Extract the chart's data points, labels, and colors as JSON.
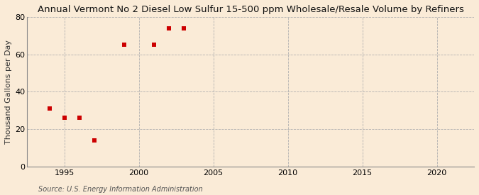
{
  "title": "Annual Vermont No 2 Diesel Low Sulfur 15-500 ppm Wholesale/Resale Volume by Refiners",
  "ylabel": "Thousand Gallons per Day",
  "source": "Source: U.S. Energy Information Administration",
  "x_data": [
    1994,
    1995,
    1996,
    1997,
    1999,
    2001,
    2002,
    2003
  ],
  "y_data": [
    31,
    26,
    26,
    14,
    65,
    65,
    74,
    74
  ],
  "marker_color": "#cc0000",
  "marker_size": 25,
  "xlim": [
    1992.5,
    2022.5
  ],
  "ylim": [
    0,
    80
  ],
  "yticks": [
    0,
    20,
    40,
    60,
    80
  ],
  "xticks": [
    1995,
    2000,
    2005,
    2010,
    2015,
    2020
  ],
  "background_color": "#faebd7",
  "grid_color": "#b0b0b0",
  "title_fontsize": 9.5,
  "axis_label_fontsize": 8,
  "tick_fontsize": 8,
  "source_fontsize": 7
}
